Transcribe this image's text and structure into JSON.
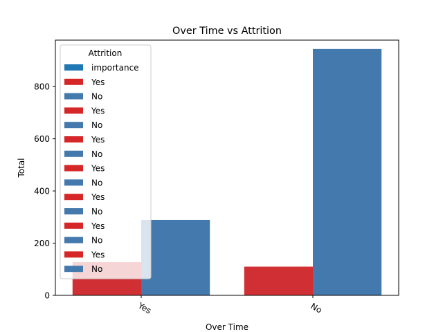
{
  "chart_data": {
    "type": "bar",
    "title": "Over Time vs Attrition",
    "xlabel": "Over Time",
    "ylabel": "Total",
    "categories": [
      "Yes",
      "No"
    ],
    "series": [
      {
        "name": "Yes",
        "values": [
          127,
          110
        ],
        "color": "#d03033"
      },
      {
        "name": "No",
        "values": [
          289,
          944
        ],
        "color": "#4479ad"
      }
    ],
    "ylim": [
      0,
      978
    ],
    "yticks": [
      0,
      200,
      400,
      600,
      800
    ],
    "grid": false,
    "legend": {
      "title": "Attrition",
      "position": "top-left",
      "entries": [
        {
          "label": "importance",
          "color": "#1f77b4"
        },
        {
          "label": "Yes",
          "color": "#d62728"
        },
        {
          "label": "No",
          "color": "#4479ad"
        },
        {
          "label": "Yes",
          "color": "#d62728"
        },
        {
          "label": "No",
          "color": "#4479ad"
        },
        {
          "label": "Yes",
          "color": "#d62728"
        },
        {
          "label": "No",
          "color": "#4479ad"
        },
        {
          "label": "Yes",
          "color": "#d62728"
        },
        {
          "label": "No",
          "color": "#4479ad"
        },
        {
          "label": "Yes",
          "color": "#d62728"
        },
        {
          "label": "No",
          "color": "#4479ad"
        },
        {
          "label": "Yes",
          "color": "#d62728"
        },
        {
          "label": "No",
          "color": "#4479ad"
        },
        {
          "label": "Yes",
          "color": "#d62728"
        },
        {
          "label": "No",
          "color": "#4479ad"
        }
      ]
    }
  }
}
